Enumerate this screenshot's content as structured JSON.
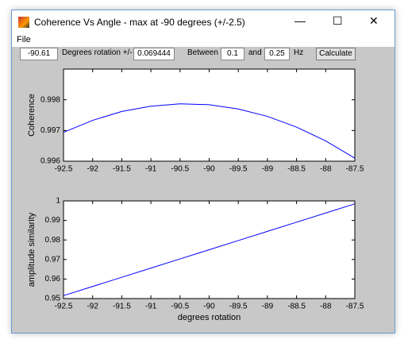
{
  "window": {
    "title": "Coherence Vs Angle - max at -90 degrees (+/-2.5)"
  },
  "menu": [
    "File"
  ],
  "toolbar": {
    "max_angle": "-90.61",
    "rotation_label": "Degrees rotation +/-",
    "rotation": "0.069444",
    "between_label": "Between",
    "low": "0.1",
    "and_label": "and",
    "high": "0.25",
    "unit": "Hz",
    "button": "Calculate"
  },
  "chart_data": [
    {
      "type": "line",
      "ylabel": "Coherence",
      "x": [
        -92.5,
        -92,
        -91.5,
        -91,
        -90.5,
        -90,
        -89.5,
        -89,
        -88.5,
        -88,
        -87.5
      ],
      "values": [
        0.99694,
        0.99733,
        0.99762,
        0.99779,
        0.99787,
        0.99784,
        0.9977,
        0.99746,
        0.99711,
        0.99666,
        0.9961
      ],
      "color": "#0000ff",
      "xlim": [
        -92.5,
        -87.5
      ],
      "xticks": [
        -92.5,
        -92,
        -91.5,
        -91,
        -90.5,
        -90,
        -89.5,
        -89,
        -88.5,
        -88,
        -87.5
      ],
      "ylim": [
        0.996,
        0.999
      ],
      "yticks": [
        0.996,
        0.997,
        0.998
      ]
    },
    {
      "type": "line",
      "ylabel": "amplitude similarity",
      "xlabel": "degrees rotation",
      "x": [
        -92.5,
        -92,
        -91.5,
        -91,
        -90.5,
        -90,
        -89.5,
        -89,
        -88.5,
        -88,
        -87.5
      ],
      "values": [
        0.9515,
        0.9562,
        0.9609,
        0.9656,
        0.9703,
        0.975,
        0.9797,
        0.9844,
        0.9891,
        0.9938,
        0.9985
      ],
      "color": "#0000ff",
      "xlim": [
        -92.5,
        -87.5
      ],
      "xticks": [
        -92.5,
        -92,
        -91.5,
        -91,
        -90.5,
        -90,
        -89.5,
        -89,
        -88.5,
        -88,
        -87.5
      ],
      "ylim": [
        0.95,
        1
      ],
      "yticks": [
        0.95,
        0.96,
        0.97,
        0.98,
        0.99,
        1
      ]
    }
  ]
}
